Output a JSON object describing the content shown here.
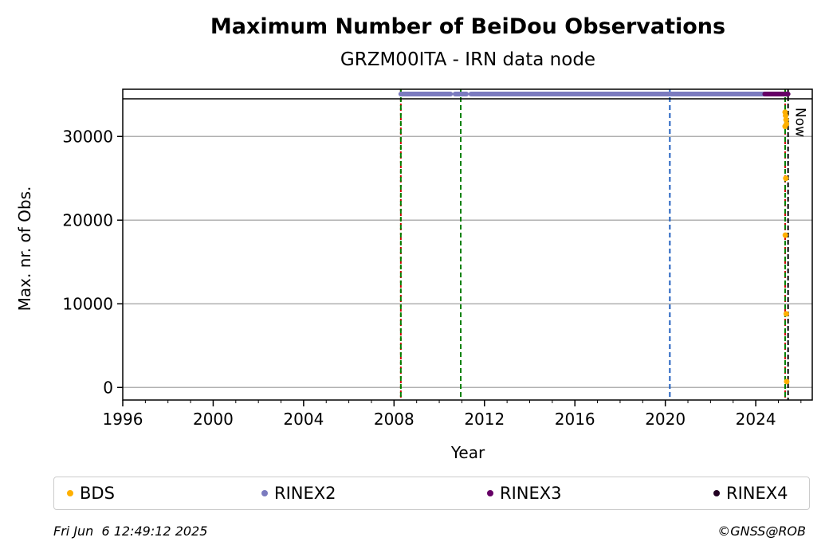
{
  "chart_data": {
    "type": "scatter",
    "title": "Maximum Number of BeiDou Observations",
    "subtitle": "GRZM00ITA - IRN data node",
    "xlabel": "Year",
    "ylabel": "Max. nr. of Obs.",
    "xlim": [
      1996,
      2026.5
    ],
    "ylim": [
      -1500,
      34500
    ],
    "x_ticks": [
      "1996",
      "2000",
      "2004",
      "2008",
      "2012",
      "2016",
      "2020",
      "2024"
    ],
    "y_ticks": [
      "0",
      "10000",
      "20000",
      "30000"
    ],
    "grid": "horizontal",
    "now_label": "Now",
    "now_x": 2025.43,
    "vertical_lines": [
      {
        "x": 2008.3,
        "color": "#cc0000",
        "style": "dashed"
      },
      {
        "x": 2008.3,
        "color": "#008000",
        "style": "dashed"
      },
      {
        "x": 2010.95,
        "color": "#008000",
        "style": "dashed"
      },
      {
        "x": 2020.2,
        "color": "#1f5fbf",
        "style": "dashed"
      },
      {
        "x": 2025.3,
        "color": "#cc0000",
        "style": "dashed"
      },
      {
        "x": 2025.3,
        "color": "#008000",
        "style": "dashed"
      }
    ],
    "availability_bands": [
      {
        "name": "RINEX2",
        "color": "#7b7bbf",
        "segments": [
          [
            2008.3,
            2010.5
          ],
          [
            2010.7,
            2011.2
          ],
          [
            2011.4,
            2024.4
          ]
        ]
      },
      {
        "name": "RINEX3",
        "color": "#660066",
        "segments": [
          [
            2024.4,
            2025.43
          ]
        ]
      }
    ],
    "series": [
      {
        "name": "BDS",
        "color": "#ffb000",
        "points": [
          {
            "x": 2025.3,
            "y": 32900
          },
          {
            "x": 2025.32,
            "y": 32500
          },
          {
            "x": 2025.34,
            "y": 32000
          },
          {
            "x": 2025.36,
            "y": 31500
          },
          {
            "x": 2025.3,
            "y": 31200
          },
          {
            "x": 2025.33,
            "y": 25000
          },
          {
            "x": 2025.31,
            "y": 18200
          },
          {
            "x": 2025.35,
            "y": 8800
          },
          {
            "x": 2025.37,
            "y": 700
          }
        ]
      },
      {
        "name": "RINEX2",
        "color": "#7b7bbf",
        "points": []
      },
      {
        "name": "RINEX3",
        "color": "#660066",
        "points": []
      },
      {
        "name": "RINEX4",
        "color": "#220022",
        "points": []
      }
    ]
  },
  "legend": [
    {
      "label": "BDS",
      "color": "#ffb000"
    },
    {
      "label": "RINEX2",
      "color": "#7b7bbf"
    },
    {
      "label": "RINEX3",
      "color": "#660066"
    },
    {
      "label": "RINEX4",
      "color": "#220022"
    }
  ],
  "footer": {
    "timestamp": "Fri Jun  6 12:49:12 2025",
    "copyright": "©GNSS@ROB"
  }
}
